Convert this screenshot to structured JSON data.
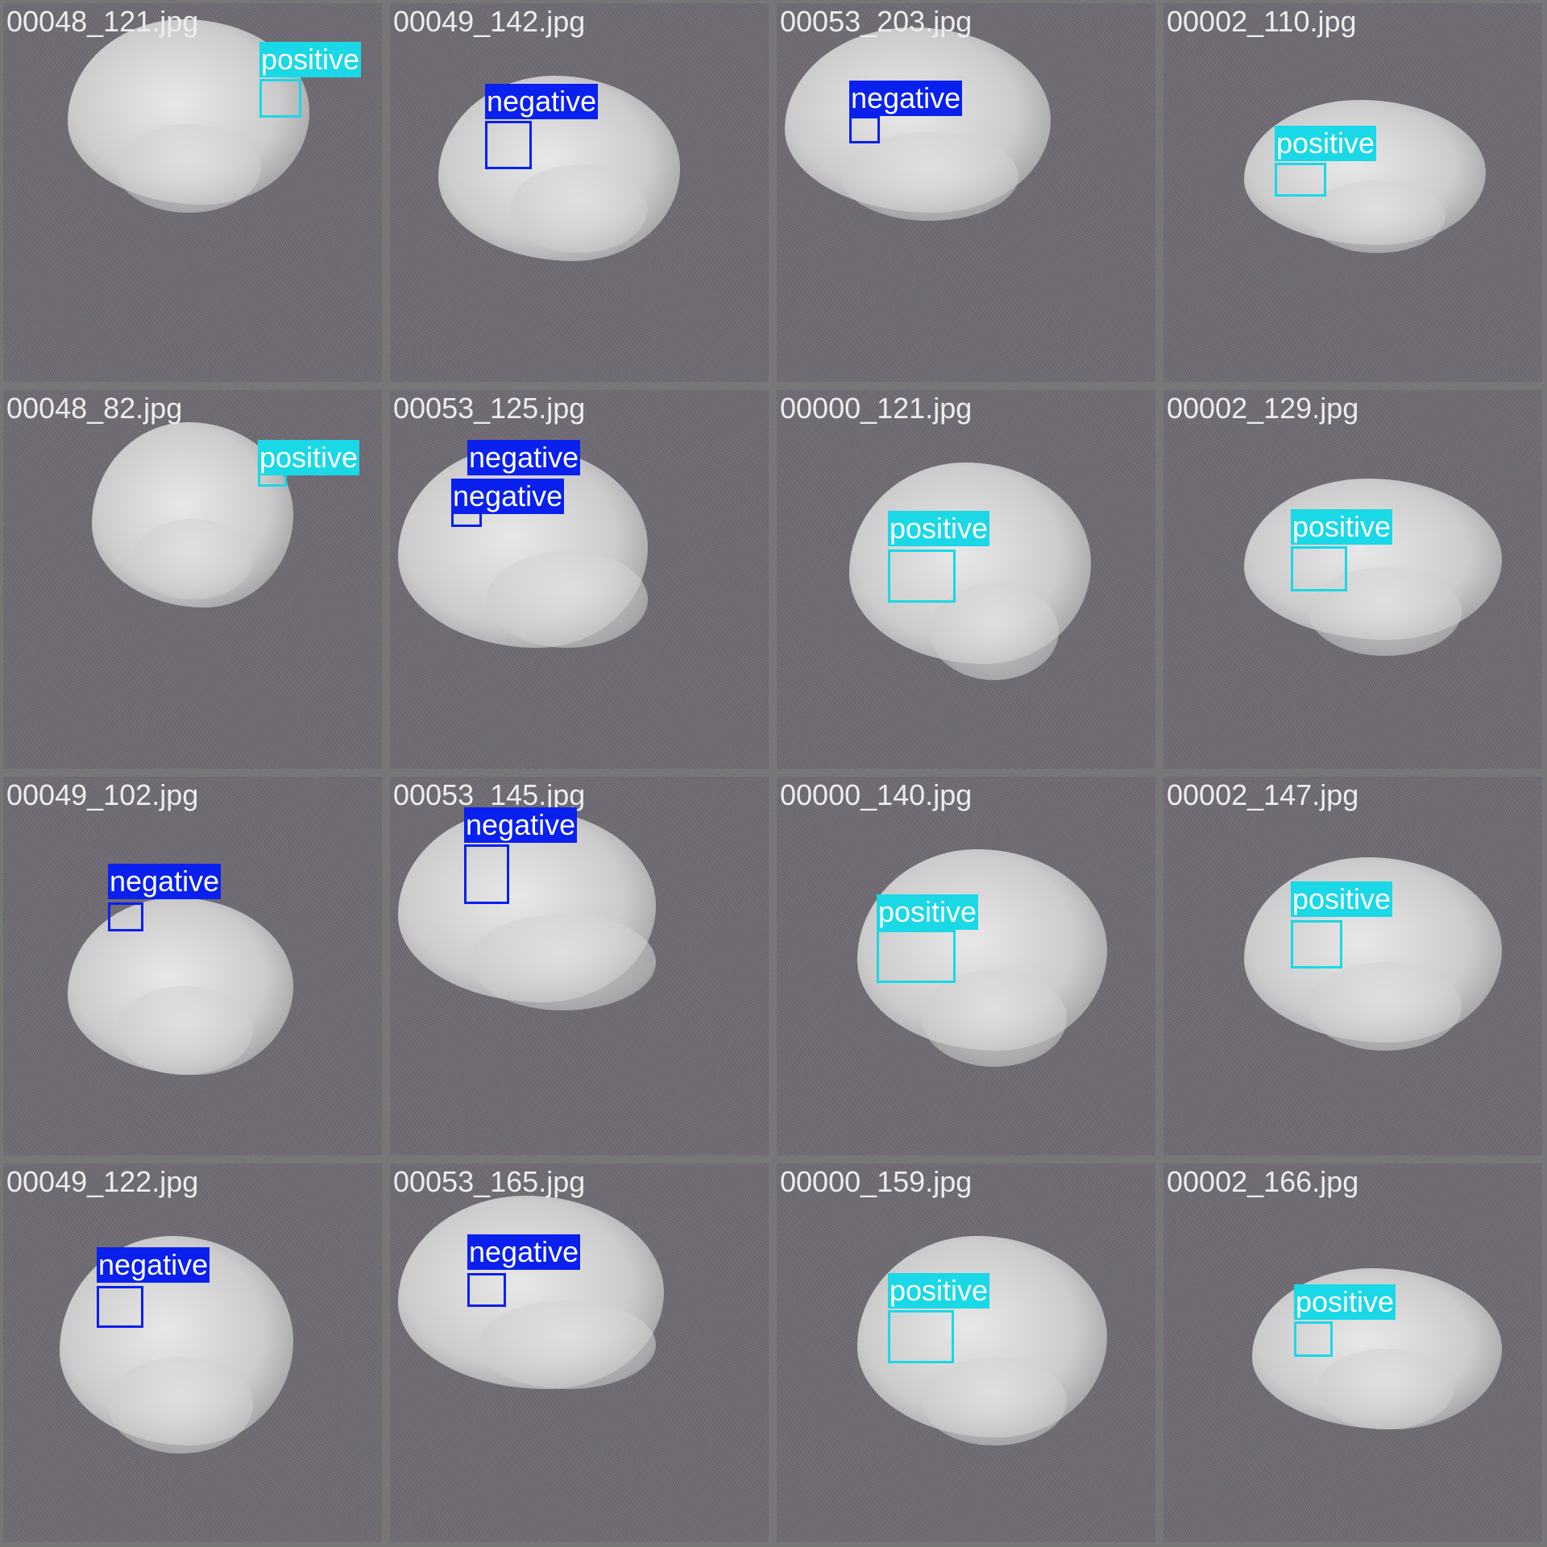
{
  "colors": {
    "positive": "#1ad8e6",
    "negative": "#0a20ee"
  },
  "grid": {
    "tiles": [
      {
        "filename": "00048_121.jpg",
        "detections": [
          {
            "label": "positive"
          }
        ]
      },
      {
        "filename": "00049_142.jpg",
        "detections": [
          {
            "label": "negative"
          }
        ]
      },
      {
        "filename": "00053_203.jpg",
        "detections": [
          {
            "label": "negative"
          }
        ]
      },
      {
        "filename": "00002_110.jpg",
        "detections": [
          {
            "label": "positive"
          }
        ]
      },
      {
        "filename": "00048_82.jpg",
        "detections": [
          {
            "label": "positive"
          }
        ]
      },
      {
        "filename": "00053_125.jpg",
        "detections": [
          {
            "label": "negative"
          },
          {
            "label": "negative"
          }
        ]
      },
      {
        "filename": "00000_121.jpg",
        "detections": [
          {
            "label": "positive"
          }
        ]
      },
      {
        "filename": "00002_129.jpg",
        "detections": [
          {
            "label": "positive"
          }
        ]
      },
      {
        "filename": "00049_102.jpg",
        "detections": [
          {
            "label": "negative"
          }
        ]
      },
      {
        "filename": "00053_145.jpg",
        "detections": [
          {
            "label": "negative"
          }
        ]
      },
      {
        "filename": "00000_140.jpg",
        "detections": [
          {
            "label": "positive"
          }
        ]
      },
      {
        "filename": "00002_147.jpg",
        "detections": [
          {
            "label": "positive"
          }
        ]
      },
      {
        "filename": "00049_122.jpg",
        "detections": [
          {
            "label": "negative"
          }
        ]
      },
      {
        "filename": "00053_165.jpg",
        "detections": [
          {
            "label": "negative"
          }
        ]
      },
      {
        "filename": "00000_159.jpg",
        "detections": [
          {
            "label": "positive"
          }
        ]
      },
      {
        "filename": "00002_166.jpg",
        "detections": [
          {
            "label": "positive"
          }
        ]
      }
    ]
  }
}
